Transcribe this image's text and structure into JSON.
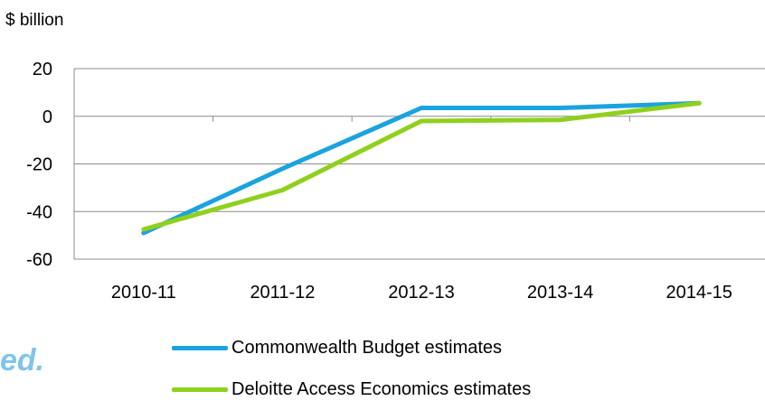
{
  "watermark_text": "ed.",
  "chart_data": {
    "type": "line",
    "ylabel": "$ billion",
    "xlabel": "",
    "title": "",
    "categories": [
      "2010-11",
      "2011-12",
      "2012-13",
      "2013-14",
      "2014-15"
    ],
    "ylim": [
      -60,
      20
    ],
    "yticks": [
      20,
      0,
      -20,
      -40,
      -60
    ],
    "grid": true,
    "legend_position": "bottom",
    "series": [
      {
        "name": "Commonwealth Budget estimates",
        "color": "#1aa3de",
        "values": [
          -49,
          -22,
          3.5,
          3.5,
          5.5
        ]
      },
      {
        "name": "Deloitte Access Economics estimates",
        "color": "#8fd01d",
        "values": [
          -47.5,
          -31,
          -2,
          -1.5,
          5.5
        ]
      }
    ]
  }
}
